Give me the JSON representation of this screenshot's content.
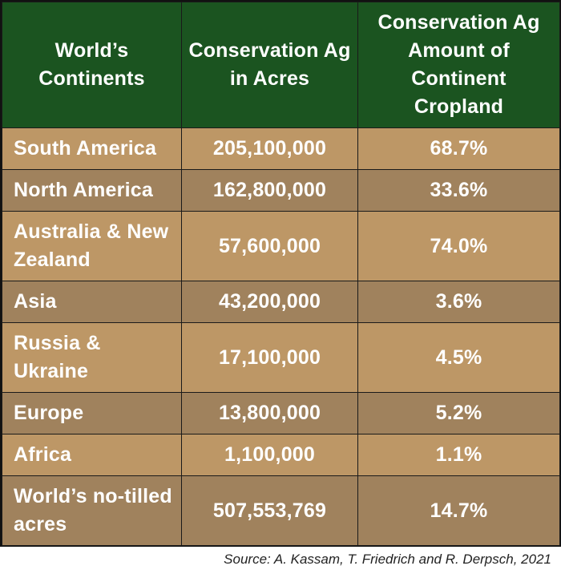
{
  "headers": {
    "col1": "World’s Continents",
    "col2": "Conservation Ag in Acres",
    "col3": "Conservation Ag Amount of Continent Cropland"
  },
  "rows": [
    {
      "continent": "South America",
      "acres": "205,100,000",
      "percent": "68.7%"
    },
    {
      "continent": "North America",
      "acres": "162,800,000",
      "percent": "33.6%"
    },
    {
      "continent": "Australia & New Zealand",
      "acres": "57,600,000",
      "percent": "74.0%"
    },
    {
      "continent": "Asia",
      "acres": "43,200,000",
      "percent": "3.6%"
    },
    {
      "continent": "Russia & Ukraine",
      "acres": "17,100,000",
      "percent": "4.5%"
    },
    {
      "continent": "Europe",
      "acres": "13,800,000",
      "percent": "5.2%"
    },
    {
      "continent": "Africa",
      "acres": "1,100,000",
      "percent": "1.1%"
    },
    {
      "continent": "World’s no-tilled acres",
      "acres": "507,553,769",
      "percent": "14.7%"
    }
  ],
  "source": "Source: A. Kassam, T. Friedrich  and R. Derpsch, 2021",
  "colors": {
    "header_bg": "#1b5420",
    "row_light": "#bd9766",
    "row_dark": "#a0825d"
  }
}
